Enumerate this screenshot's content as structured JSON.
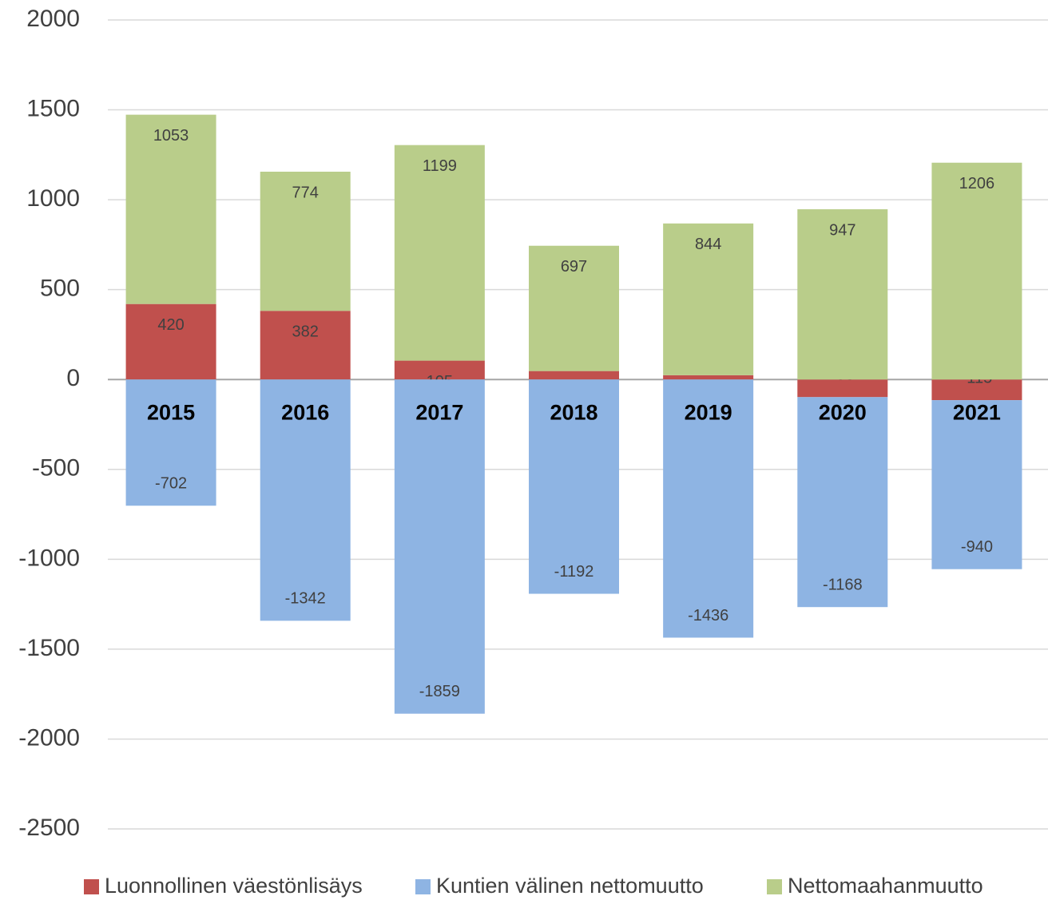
{
  "chart_data": {
    "type": "stacked_bar",
    "categories": [
      "2015",
      "2016",
      "2017",
      "2018",
      "2019",
      "2020",
      "2021"
    ],
    "series": [
      {
        "name": "Luonnollinen väestönlisäys",
        "color": "#c0504d",
        "values": [
          420,
          382,
          105,
          47,
          24,
          -98,
          -115
        ]
      },
      {
        "name": "Kuntien välinen nettomuutto",
        "color": "#8eb4e3",
        "values": [
          -702,
          -1342,
          -1859,
          -1192,
          -1436,
          -1168,
          -940
        ]
      },
      {
        "name": "Nettomaahanmuutto",
        "color": "#b9cd8a",
        "values": [
          1053,
          774,
          1199,
          697,
          844,
          947,
          1206
        ]
      }
    ],
    "ylim": [
      -2500,
      2000
    ],
    "yticks": [
      -2500,
      -2000,
      -1500,
      -1000,
      -500,
      0,
      500,
      1000,
      1500,
      2000
    ],
    "grid": true,
    "legend": "bottom"
  }
}
